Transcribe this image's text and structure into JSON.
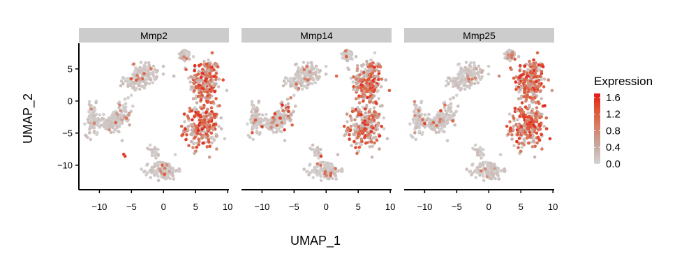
{
  "chart_data": {
    "type": "scatter",
    "title": "",
    "xlabel": "UMAP_1",
    "ylabel": "UMAP_2",
    "xlim": [
      -13.2,
      10.2
    ],
    "ylim": [
      -13.6,
      9.0
    ],
    "xticks": [
      -10,
      -5,
      0,
      5,
      10
    ],
    "yticks": [
      5,
      0,
      -5,
      -10
    ],
    "xtick_labels": [
      "−10",
      "−5",
      "0",
      "5",
      "10"
    ],
    "ytick_labels": [
      "5",
      "0",
      "−5",
      "−10"
    ],
    "grid": false,
    "point_size_note": "small points colored by expression",
    "panels": [
      {
        "name": "Mmp2",
        "hotspots": [
          "right_cluster_upper",
          "right_cluster_lower"
        ],
        "extra_high_points": [
          [
            -6.0,
            -8.6
          ],
          [
            -6.2,
            -8.3
          ],
          [
            3.5,
            -6.0
          ]
        ],
        "fraction_high": 0.55
      },
      {
        "name": "Mmp14",
        "hotspots": [
          "right_cluster_upper",
          "right_cluster_lower",
          "left_scatter"
        ],
        "extra_high_points": [
          [
            -8.0,
            -2.0
          ],
          [
            -6.5,
            -4.5
          ],
          [
            -10.0,
            -4.0
          ],
          [
            -0.8,
            -8.6
          ]
        ],
        "fraction_high": 0.45
      },
      {
        "name": "Mmp25",
        "hotspots": [
          "right_cluster_lower",
          "right_cluster_upper"
        ],
        "extra_high_points": [
          [
            -10.0,
            -3.5
          ],
          [
            -7.5,
            -1.5
          ]
        ],
        "fraction_high": 0.7
      }
    ],
    "legend": {
      "title": "Expression",
      "position": "right",
      "range": [
        0.0,
        1.7
      ],
      "ticks": [
        1.6,
        1.2,
        0.8,
        0.4,
        0.0
      ],
      "tick_labels": [
        "1.6",
        "1.2",
        "0.8",
        "0.4",
        "0.0"
      ],
      "colors": [
        "#d3d3d3",
        "#c7aaa3",
        "#d77c63",
        "#e0502f",
        "#e31a1c"
      ]
    }
  },
  "colors": {
    "background": "#ffffff",
    "strip_fill": "#cccccc",
    "low": "#d3d3d3",
    "high": "#e31a1c",
    "axis": "#000000"
  }
}
